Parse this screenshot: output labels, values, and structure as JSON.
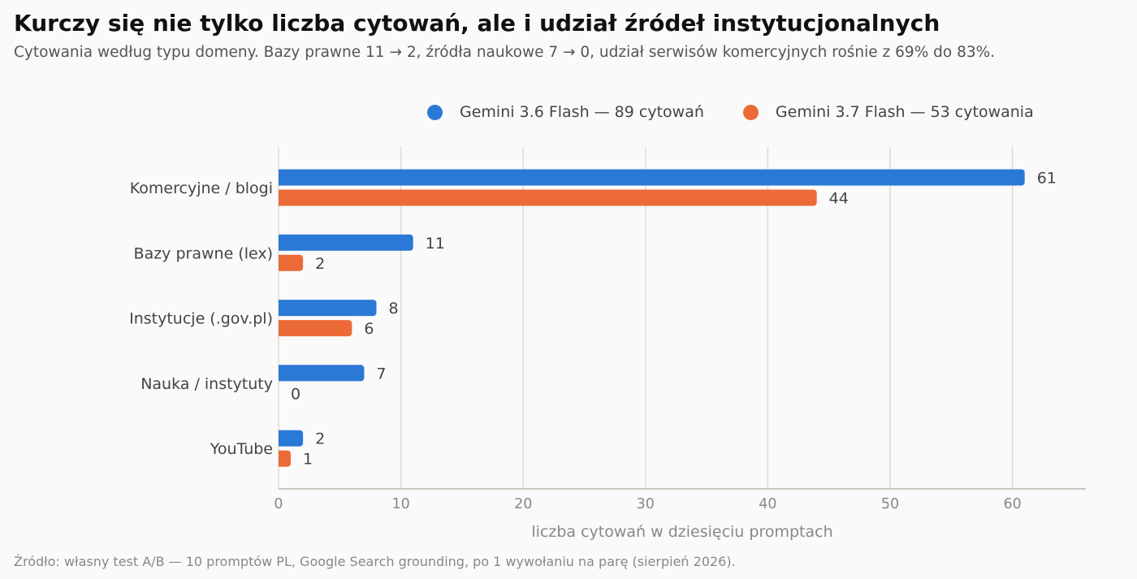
{
  "title": "Kurczy się nie tylko liczba cytowań, ale i udział źródeł instytucjonalnych",
  "subtitle": "Cytowania według typu domeny. Bazy prawne 11 → 2, źródła naukowe 7 → 0, udział serwisów komercyjnych rośnie z 69% do 83%.",
  "source": "Źródło: własny test A/B — 10 promptów PL, Google Search grounding, po 1 wywołaniu na parę (sierpień 2026).",
  "legend": [
    {
      "label": "Gemini 3.6 Flash — 89 cytowań",
      "color": "#2b79d6"
    },
    {
      "label": "Gemini 3.7 Flash — 53 cytowania",
      "color": "#ec6a37"
    }
  ],
  "chart_data": {
    "type": "bar",
    "orientation": "horizontal",
    "categories": [
      "Komercyjne / blogi",
      "Bazy prawne (lex)",
      "Instytucje (.gov.pl)",
      "Nauka / instytuty",
      "YouTube"
    ],
    "series": [
      {
        "name": "Gemini 3.6 Flash — 89 cytowań",
        "values": [
          61,
          11,
          8,
          7,
          2
        ],
        "color": "#2b79d6"
      },
      {
        "name": "Gemini 3.7 Flash — 53 cytowania",
        "values": [
          44,
          2,
          6,
          0,
          1
        ],
        "color": "#ec6a37"
      }
    ],
    "xlabel": "liczba cytowań w dziesięciu promptach",
    "xlim": [
      0,
      66
    ],
    "xticks": [
      0,
      10,
      20,
      30,
      40,
      50,
      60
    ],
    "grid": "vertical",
    "legend_position": "top-right"
  }
}
